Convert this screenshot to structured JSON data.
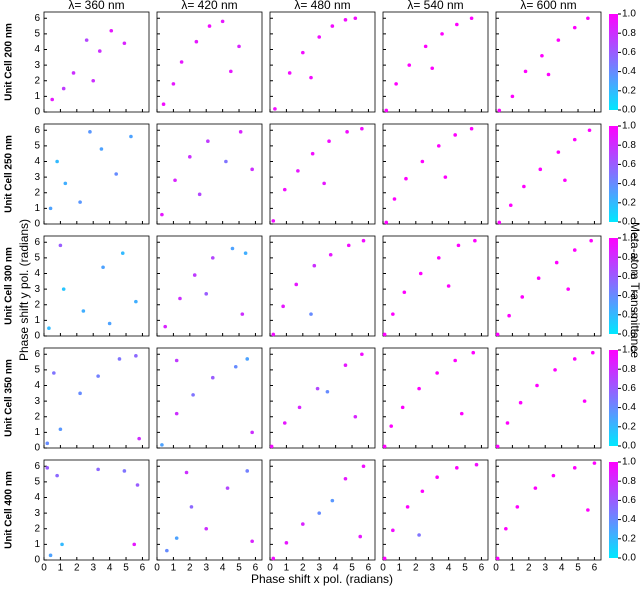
{
  "figure": {
    "column_titles": [
      "λ= 360 nm",
      "λ= 420 nm",
      "λ= 480 nm",
      "λ= 540 nm",
      "λ= 600 nm"
    ],
    "row_titles": [
      "Unit Cell 200 nm",
      "Unit Cell 250 nm",
      "Unit Cell 300 nm",
      "Unit Cell 350 nm",
      "Unit Cell 400 nm"
    ],
    "xlabel": "Phase shift x pol. (radians)",
    "ylabel": "Phase shift y pol. (radians)",
    "xlim": [
      0,
      6.4
    ],
    "ylim": [
      0,
      6.4
    ],
    "xticks": [
      0,
      1,
      2,
      3,
      4,
      5,
      6
    ],
    "yticks": [
      0,
      1,
      2,
      3,
      4,
      5,
      6
    ],
    "colorbar": {
      "label": "Meta-atom Transmittance",
      "clim": [
        0,
        1
      ],
      "colors": [
        "#00e8ff",
        "#ff00ff"
      ],
      "ticks": [
        {
          "value": 0,
          "label": "0.0"
        },
        {
          "value": 0.2,
          "label": "0.2"
        },
        {
          "value": 0.4,
          "label": "0.4"
        },
        {
          "value": 0.6,
          "label": "0.6"
        },
        {
          "value": 0.8,
          "label": "0.8"
        },
        {
          "value": 1,
          "label": "1.0"
        }
      ]
    }
  },
  "chart_data": [
    {
      "type": "scatter",
      "x": [
        0.5,
        1.8,
        2.6,
        3.4,
        4.1,
        4.9,
        1.2,
        3.0
      ],
      "y": [
        0.8,
        2.5,
        4.6,
        3.9,
        5.2,
        4.4,
        1.5,
        2.0
      ],
      "values": [
        0.9,
        0.8,
        0.7,
        0.8,
        0.9,
        0.85,
        0.75,
        0.8
      ]
    },
    {
      "type": "scatter",
      "x": [
        0.4,
        1.5,
        2.4,
        3.2,
        4.0,
        5.0,
        1.0,
        4.5
      ],
      "y": [
        0.5,
        3.2,
        4.5,
        5.5,
        5.8,
        4.2,
        1.8,
        2.6
      ],
      "values": [
        0.95,
        0.9,
        0.9,
        0.95,
        0.9,
        0.85,
        0.9,
        0.9
      ]
    },
    {
      "type": "scatter",
      "x": [
        0.3,
        1.2,
        2.0,
        3.0,
        3.8,
        4.6,
        5.2,
        2.5
      ],
      "y": [
        0.2,
        2.5,
        3.8,
        4.8,
        5.5,
        5.9,
        6.0,
        2.2
      ],
      "values": [
        0.95,
        0.95,
        0.95,
        0.95,
        0.95,
        0.95,
        0.95,
        0.95
      ]
    },
    {
      "type": "scatter",
      "x": [
        0.2,
        0.8,
        1.6,
        2.6,
        3.6,
        4.5,
        5.4,
        3.0
      ],
      "y": [
        0.1,
        1.8,
        3.0,
        4.2,
        5.0,
        5.6,
        6.0,
        2.8
      ],
      "values": [
        1,
        1,
        1,
        1,
        1,
        1,
        1,
        1
      ]
    },
    {
      "type": "scatter",
      "x": [
        0.2,
        1.0,
        1.8,
        2.8,
        3.8,
        4.8,
        5.6,
        3.2
      ],
      "y": [
        0.1,
        1.0,
        2.6,
        3.6,
        4.6,
        5.4,
        6.0,
        2.4
      ],
      "values": [
        1,
        1,
        1,
        1,
        1,
        1,
        1,
        1
      ]
    },
    {
      "type": "scatter",
      "x": [
        0.4,
        1.3,
        2.2,
        3.5,
        4.4,
        5.3,
        0.8,
        2.8
      ],
      "y": [
        1.0,
        2.6,
        1.4,
        4.8,
        3.2,
        5.6,
        4.0,
        5.9
      ],
      "values": [
        0.3,
        0.25,
        0.35,
        0.3,
        0.4,
        0.3,
        0.2,
        0.35
      ]
    },
    {
      "type": "scatter",
      "x": [
        0.3,
        1.1,
        2.0,
        3.1,
        4.2,
        5.1,
        5.8,
        2.6
      ],
      "y": [
        0.6,
        2.8,
        4.3,
        5.3,
        4.0,
        5.9,
        3.5,
        1.9
      ],
      "values": [
        0.9,
        0.85,
        0.8,
        0.75,
        0.5,
        0.85,
        0.8,
        0.7
      ]
    },
    {
      "type": "scatter",
      "x": [
        0.2,
        0.9,
        1.7,
        2.6,
        3.6,
        4.7,
        5.6,
        3.3
      ],
      "y": [
        0.2,
        2.2,
        3.4,
        4.5,
        5.3,
        5.9,
        6.1,
        2.6
      ],
      "values": [
        0.95,
        0.95,
        0.9,
        0.95,
        0.95,
        0.95,
        0.95,
        0.9
      ]
    },
    {
      "type": "scatter",
      "x": [
        0.2,
        0.7,
        1.4,
        2.4,
        3.4,
        4.4,
        5.4,
        3.8
      ],
      "y": [
        0.1,
        1.6,
        2.9,
        4.0,
        5.0,
        5.7,
        6.1,
        3.0
      ],
      "values": [
        1,
        1,
        1,
        1,
        1,
        1,
        1,
        1
      ]
    },
    {
      "type": "scatter",
      "x": [
        0.2,
        0.9,
        1.7,
        2.7,
        3.8,
        4.8,
        5.7,
        4.2
      ],
      "y": [
        0.1,
        1.2,
        2.4,
        3.5,
        4.6,
        5.4,
        6.0,
        2.8
      ],
      "values": [
        1,
        1,
        1,
        1,
        1,
        1,
        1,
        1
      ]
    },
    {
      "type": "scatter",
      "x": [
        0.3,
        1.2,
        2.4,
        3.6,
        4.8,
        5.6,
        1.0,
        4.0
      ],
      "y": [
        0.5,
        3.0,
        1.6,
        4.4,
        5.3,
        2.2,
        5.8,
        0.8
      ],
      "values": [
        0.2,
        0.15,
        0.25,
        0.3,
        0.2,
        0.25,
        0.6,
        0.3
      ]
    },
    {
      "type": "scatter",
      "x": [
        0.5,
        1.4,
        2.3,
        3.4,
        4.6,
        5.4,
        5.2,
        3.0
      ],
      "y": [
        0.6,
        2.4,
        3.9,
        5.0,
        5.6,
        5.3,
        1.4,
        2.7
      ],
      "values": [
        0.85,
        0.8,
        0.75,
        0.7,
        0.3,
        0.25,
        0.8,
        0.6
      ]
    },
    {
      "type": "scatter",
      "x": [
        0.2,
        0.8,
        1.6,
        2.7,
        3.7,
        4.8,
        5.7,
        2.5
      ],
      "y": [
        0.1,
        1.9,
        3.3,
        4.5,
        5.2,
        5.8,
        6.1,
        1.4
      ],
      "values": [
        0.95,
        0.9,
        0.9,
        0.8,
        0.9,
        0.95,
        0.95,
        0.4
      ]
    },
    {
      "type": "scatter",
      "x": [
        0.1,
        0.6,
        1.3,
        2.3,
        3.4,
        4.6,
        5.6,
        4.0
      ],
      "y": [
        0.1,
        1.4,
        2.8,
        4.0,
        5.0,
        5.8,
        6.1,
        3.2
      ],
      "values": [
        1,
        1,
        1,
        1,
        1,
        1,
        1,
        1
      ]
    },
    {
      "type": "scatter",
      "x": [
        0.1,
        0.8,
        1.6,
        2.6,
        3.7,
        4.8,
        5.8,
        4.4
      ],
      "y": [
        0.1,
        1.3,
        2.5,
        3.7,
        4.7,
        5.5,
        6.1,
        3.0
      ],
      "values": [
        1,
        1,
        1,
        1,
        1,
        1,
        1,
        1
      ]
    },
    {
      "type": "scatter",
      "x": [
        0.2,
        1.0,
        2.2,
        3.3,
        4.6,
        5.6,
        5.8,
        0.6
      ],
      "y": [
        0.3,
        1.2,
        3.5,
        4.6,
        5.7,
        5.9,
        0.6,
        4.8
      ],
      "values": [
        0.4,
        0.35,
        0.4,
        0.45,
        0.5,
        0.55,
        0.8,
        0.5
      ]
    },
    {
      "type": "scatter",
      "x": [
        0.3,
        1.2,
        2.2,
        3.4,
        4.8,
        5.5,
        5.8,
        1.2
      ],
      "y": [
        0.2,
        2.2,
        3.4,
        4.5,
        5.2,
        5.7,
        1.0,
        5.6
      ],
      "values": [
        0.3,
        0.8,
        0.5,
        0.6,
        0.4,
        0.3,
        0.8,
        0.75
      ]
    },
    {
      "type": "scatter",
      "x": [
        0.1,
        0.9,
        1.8,
        2.9,
        3.5,
        4.6,
        5.6,
        5.2
      ],
      "y": [
        0.1,
        1.6,
        2.6,
        3.8,
        3.6,
        5.3,
        6.0,
        2.0
      ],
      "values": [
        0.95,
        0.9,
        0.85,
        0.7,
        0.4,
        0.9,
        0.95,
        0.85
      ]
    },
    {
      "type": "scatter",
      "x": [
        0.1,
        0.5,
        1.2,
        2.2,
        3.3,
        4.4,
        5.5,
        4.8
      ],
      "y": [
        0.1,
        1.4,
        2.6,
        3.8,
        4.8,
        5.6,
        6.1,
        2.2
      ],
      "values": [
        1,
        1,
        1,
        1,
        1,
        1,
        1,
        1
      ]
    },
    {
      "type": "scatter",
      "x": [
        0.1,
        0.7,
        1.5,
        2.5,
        3.6,
        4.8,
        5.9,
        5.4
      ],
      "y": [
        0.1,
        1.6,
        2.9,
        4.0,
        5.0,
        5.7,
        6.1,
        3.0
      ],
      "values": [
        1,
        1,
        1,
        1,
        1,
        1,
        1,
        1
      ]
    },
    {
      "type": "scatter",
      "x": [
        0.2,
        0.8,
        1.1,
        3.3,
        4.9,
        5.7,
        5.5,
        0.4
      ],
      "y": [
        5.9,
        5.4,
        1.0,
        5.8,
        5.7,
        4.8,
        1.0,
        0.3
      ],
      "values": [
        0.6,
        0.55,
        0.2,
        0.55,
        0.5,
        0.6,
        0.9,
        0.3
      ]
    },
    {
      "type": "scatter",
      "x": [
        0.6,
        1.2,
        2.1,
        3.0,
        4.3,
        5.5,
        5.8,
        1.8
      ],
      "y": [
        0.6,
        1.4,
        3.4,
        2.0,
        4.6,
        5.7,
        1.2,
        5.6
      ],
      "values": [
        0.4,
        0.3,
        0.55,
        0.8,
        0.7,
        0.45,
        0.85,
        0.8
      ]
    },
    {
      "type": "scatter",
      "x": [
        0.2,
        1.0,
        2.0,
        3.0,
        3.8,
        4.6,
        5.7,
        5.5
      ],
      "y": [
        0.1,
        1.1,
        2.3,
        3.0,
        3.8,
        5.2,
        6.0,
        1.5
      ],
      "values": [
        0.95,
        0.9,
        0.85,
        0.4,
        0.35,
        0.9,
        0.95,
        0.9
      ]
    },
    {
      "type": "scatter",
      "x": [
        0.1,
        0.6,
        1.5,
        2.4,
        3.3,
        4.5,
        5.7,
        2.2
      ],
      "y": [
        0.1,
        1.9,
        3.4,
        4.4,
        5.3,
        5.9,
        6.1,
        1.6
      ],
      "values": [
        1,
        0.95,
        1,
        1,
        1,
        1,
        0.95,
        0.5
      ]
    },
    {
      "type": "scatter",
      "x": [
        0.1,
        0.6,
        1.3,
        2.4,
        3.5,
        4.8,
        6.0,
        5.6
      ],
      "y": [
        0.1,
        2.0,
        3.4,
        4.6,
        5.4,
        5.9,
        6.2,
        3.2
      ],
      "values": [
        1,
        1,
        1,
        1,
        1,
        1,
        1,
        1
      ]
    }
  ]
}
